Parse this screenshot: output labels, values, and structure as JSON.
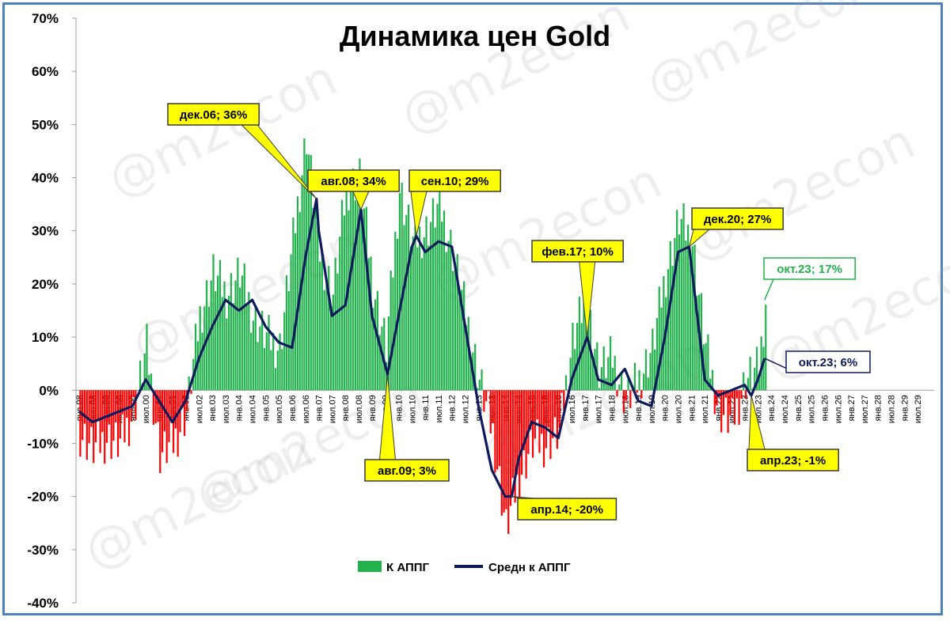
{
  "chart_data": {
    "type": "bar",
    "title": "Динамика цен Gold",
    "ylim": [
      -40,
      70
    ],
    "y_ticks": [
      "70%",
      "60%",
      "50%",
      "40%",
      "30%",
      "20%",
      "10%",
      "0%",
      "-10%",
      "-20%",
      "-30%",
      "-40%"
    ],
    "x_tick_labels": [
      "янв.98",
      "июл.98",
      "янв.99",
      "июл.99",
      "янв.00",
      "июл.00",
      "янв.01",
      "июл.01",
      "янв.02",
      "июл.02",
      "янв.03",
      "июл.03",
      "янв.04",
      "июл.04",
      "янв.05",
      "июл.05",
      "янв.06",
      "июл.06",
      "янв.07",
      "июл.07",
      "янв.08",
      "июл.08",
      "янв.09",
      "июл.09",
      "янв.10",
      "июл.10",
      "янв.11",
      "июл.11",
      "янв.12",
      "июл.12",
      "янв.13",
      "июл.13",
      "янв.14",
      "июл.14",
      "янв.15",
      "июл.15",
      "янв.16",
      "июл.16",
      "янв.17",
      "июл.17",
      "янв.18",
      "июл.18",
      "янв.19",
      "июл.19",
      "янв.20",
      "июл.20",
      "янв.21",
      "июл.21",
      "янв.22",
      "июл.22",
      "янв.23",
      "июл.23",
      "янв.24",
      "июл.24",
      "янв.25",
      "июл.25",
      "янв.26",
      "июл.26",
      "янв.27",
      "июл.27",
      "янв.28",
      "июл.28",
      "янв.29",
      "июл.29"
    ],
    "grid": false,
    "legend_position": "bottom-center",
    "series": [
      {
        "name": "К АППГ",
        "kind": "bar",
        "color_positive": "#22b14c",
        "color_negative": "#ff0000",
        "x": [
          "янв.98",
          "июл.98",
          "янв.99",
          "июл.99",
          "янв.00",
          "июл.00",
          "янв.01",
          "июл.01",
          "янв.02",
          "июл.02",
          "янв.03",
          "июл.03",
          "янв.04",
          "июл.04",
          "янв.05",
          "июл.05",
          "янв.06",
          "июл.06",
          "янв.07",
          "июл.07",
          "янв.08",
          "июл.08",
          "янв.09",
          "июл.09",
          "янв.10",
          "июл.10",
          "янв.11",
          "июл.11",
          "янв.12",
          "июл.12",
          "янв.13",
          "июл.13",
          "янв.14",
          "июл.14",
          "янв.15",
          "июл.15",
          "янв.16",
          "июл.16",
          "янв.17",
          "июл.17",
          "янв.18",
          "июл.18",
          "янв.19",
          "июл.19",
          "янв.20",
          "июл.20",
          "янв.21",
          "июл.21",
          "янв.22",
          "июл.22",
          "янв.23",
          "июл.23",
          "окт.23"
        ],
        "values": [
          -8,
          -11,
          -9,
          -10,
          -4,
          8,
          -12,
          -10,
          -4,
          14,
          22,
          18,
          22,
          14,
          10,
          8,
          28,
          48,
          26,
          18,
          38,
          40,
          20,
          8,
          38,
          28,
          30,
          35,
          26,
          14,
          2,
          -8,
          -26,
          -16,
          -10,
          -10,
          -8,
          10,
          18,
          4,
          6,
          -2,
          2,
          8,
          22,
          32,
          28,
          8,
          -4,
          -6,
          2,
          4,
          17
        ]
      },
      {
        "name": "Средн к АППГ",
        "kind": "line",
        "color": "#0d1a5c",
        "x": [
          "янв.98",
          "июл.98",
          "янв.99",
          "июл.99",
          "янв.00",
          "июл.00",
          "янв.01",
          "июл.01",
          "янв.02",
          "июл.02",
          "янв.03",
          "июл.03",
          "янв.04",
          "июл.04",
          "янв.05",
          "июл.05",
          "янв.06",
          "июл.06",
          "дек.06",
          "янв.07",
          "июл.07",
          "янв.08",
          "авг.08",
          "янв.09",
          "авг.09",
          "янв.10",
          "июл.10",
          "сен.10",
          "янв.11",
          "июл.11",
          "янв.12",
          "июл.12",
          "янв.13",
          "июл.13",
          "янв.14",
          "апр.14",
          "июл.14",
          "янв.15",
          "июл.15",
          "янв.16",
          "июл.16",
          "фев.17",
          "июл.17",
          "янв.18",
          "июл.18",
          "янв.19",
          "июл.19",
          "янв.20",
          "июл.20",
          "дек.20",
          "июл.21",
          "янв.22",
          "июл.22",
          "янв.23",
          "апр.23",
          "июл.23",
          "окт.23"
        ],
        "values": [
          -4,
          -6,
          -5,
          -4,
          -3,
          2,
          -2,
          -6,
          -2,
          6,
          12,
          17,
          15,
          17,
          12,
          9,
          8,
          25,
          36,
          30,
          14,
          16,
          34,
          14,
          3,
          14,
          27,
          29,
          26,
          28,
          27,
          12,
          -3,
          -15,
          -20,
          -20,
          -13,
          -6,
          -7,
          -9,
          2,
          10,
          2,
          1,
          4,
          -2,
          -3,
          10,
          26,
          27,
          2,
          -1,
          0,
          1,
          -1,
          2,
          6
        ]
      }
    ],
    "annotations": [
      {
        "text": "дек.06; 36%",
        "x": "дек.06",
        "y": 36,
        "style": "yellow"
      },
      {
        "text": "авг.08; 34%",
        "x": "авг.08",
        "y": 34,
        "style": "yellow"
      },
      {
        "text": "сен.10; 29%",
        "x": "сен.10",
        "y": 29,
        "style": "yellow"
      },
      {
        "text": "авг.09; 3%",
        "x": "авг.09",
        "y": 3,
        "style": "yellow"
      },
      {
        "text": "фев.17; 10%",
        "x": "фев.17",
        "y": 10,
        "style": "yellow"
      },
      {
        "text": "дек.20; 27%",
        "x": "дек.20",
        "y": 27,
        "style": "yellow"
      },
      {
        "text": "апр.14; -20%",
        "x": "апр.14",
        "y": -20,
        "style": "yellow"
      },
      {
        "text": "апр.23; -1%",
        "x": "апр.23",
        "y": -1,
        "style": "yellow"
      },
      {
        "text": "окт.23; 17%",
        "x": "окт.23",
        "y": 17,
        "style": "green"
      },
      {
        "text": "окт.23; 6%",
        "x": "окт.23",
        "y": 6,
        "style": "navy"
      }
    ],
    "watermark": "@m2econ"
  }
}
